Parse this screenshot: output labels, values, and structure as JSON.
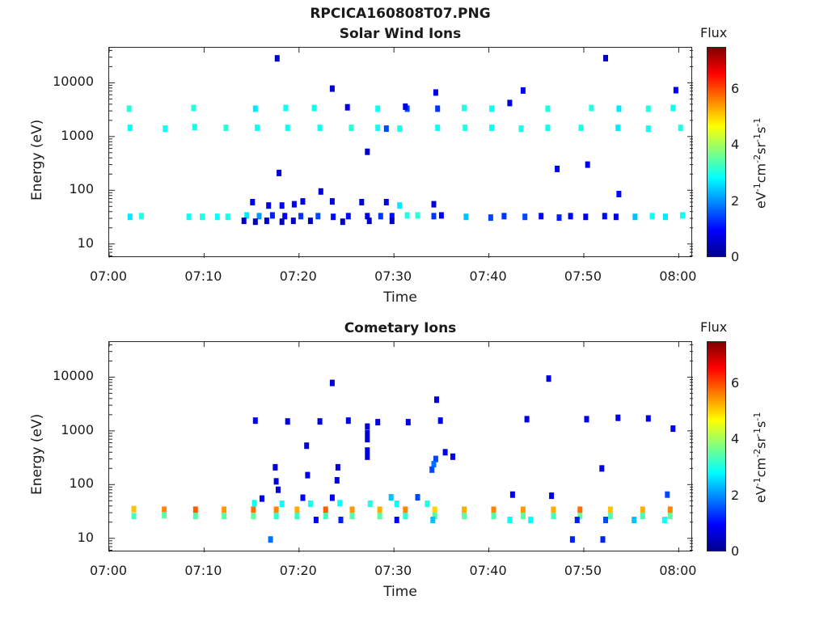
{
  "figure": {
    "title": "RPCICA160808T07.PNG",
    "time_label": "Time",
    "energy_label": "Energy (eV)",
    "x_tick_labels": [
      "07:00",
      "07:10",
      "07:20",
      "07:30",
      "07:40",
      "07:50",
      "08:00"
    ],
    "y_tick_labels": [
      "10",
      "100",
      "1000",
      "10000"
    ],
    "colorbar": {
      "title": "Flux",
      "label_parts": [
        "eV",
        "-1",
        "cm",
        "-2",
        "sr",
        "-1",
        "s",
        "-1"
      ],
      "ticks": [
        "0",
        "2",
        "4",
        "6"
      ],
      "range": [
        0,
        7.5
      ],
      "colormap": "jet",
      "colors": [
        "#00008f",
        "#0000ff",
        "#00ffff",
        "#80ff80",
        "#ffff00",
        "#ff0000",
        "#800000"
      ]
    }
  },
  "chart_data": [
    {
      "type": "heatmap",
      "title": "Solar Wind Ions",
      "xlabel": "Time",
      "ylabel": "Energy (eV)",
      "x_range_min": [
        0,
        61.5
      ],
      "y_range_eV": [
        5.5,
        45000
      ],
      "y_scale": "log",
      "z_label": "Flux",
      "z_range": [
        0,
        7.5
      ],
      "cells": [
        [
          2.2,
          32,
          2.4
        ],
        [
          3.4,
          33,
          2.8
        ],
        [
          8.4,
          32,
          2.6
        ],
        [
          9.8,
          32,
          2.8
        ],
        [
          11.4,
          32,
          2.6
        ],
        [
          12.5,
          32,
          2.7
        ],
        [
          14.5,
          34,
          2.4
        ],
        [
          15.8,
          33,
          2.0
        ],
        [
          17.2,
          34,
          1.4
        ],
        [
          18.5,
          33,
          1.2
        ],
        [
          20.2,
          33,
          1.5
        ],
        [
          22,
          33,
          1.6
        ],
        [
          23.6,
          32,
          1.3
        ],
        [
          25.2,
          33,
          1.3
        ],
        [
          27.2,
          33,
          1.0
        ],
        [
          28.6,
          33,
          1.5
        ],
        [
          29.8,
          33,
          1.3
        ],
        [
          31.4,
          34,
          2.8
        ],
        [
          32.5,
          34,
          2.9
        ],
        [
          34.2,
          33,
          1.5
        ],
        [
          35,
          34,
          1.2
        ],
        [
          37.6,
          32,
          2.2
        ],
        [
          40.2,
          31,
          1.6
        ],
        [
          41.6,
          33,
          1.5
        ],
        [
          43.8,
          32,
          1.6
        ],
        [
          45.5,
          33,
          1.2
        ],
        [
          47.4,
          31,
          1.4
        ],
        [
          48.6,
          33,
          1.2
        ],
        [
          50.2,
          32,
          1.0
        ],
        [
          52.2,
          33,
          1.3
        ],
        [
          53.4,
          32,
          1.2
        ],
        [
          55.4,
          32,
          2.2
        ],
        [
          57.2,
          33,
          2.6
        ],
        [
          58.6,
          32,
          2.4
        ],
        [
          60.4,
          34,
          2.6
        ],
        [
          14.2,
          27,
          0.6
        ],
        [
          15.4,
          26,
          0.5
        ],
        [
          16.6,
          27,
          0.6
        ],
        [
          18.2,
          26,
          0.5
        ],
        [
          19.4,
          27,
          0.5
        ],
        [
          21.2,
          27,
          0.5
        ],
        [
          24.6,
          26,
          0.5
        ],
        [
          27.4,
          27,
          0.6
        ],
        [
          29.8,
          27,
          0.5
        ],
        [
          15.1,
          60,
          1.0
        ],
        [
          16.8,
          52,
          0.9
        ],
        [
          18.2,
          52,
          1.2
        ],
        [
          19.5,
          55,
          1.1
        ],
        [
          20.4,
          62,
          0.9
        ],
        [
          23.5,
          62,
          0.8
        ],
        [
          26.6,
          60,
          0.9
        ],
        [
          29.2,
          60,
          0.9
        ],
        [
          30.6,
          52,
          2.4
        ],
        [
          34.2,
          55,
          0.8
        ],
        [
          2.1,
          3300,
          2.9
        ],
        [
          8.9,
          3400,
          2.8
        ],
        [
          15.4,
          3300,
          2.4
        ],
        [
          18.6,
          3400,
          2.6
        ],
        [
          21.6,
          3400,
          2.6
        ],
        [
          25.1,
          3500,
          1.0
        ],
        [
          28.3,
          3300,
          2.6
        ],
        [
          31.4,
          3300,
          1.6
        ],
        [
          34.6,
          3300,
          1.5
        ],
        [
          37.4,
          3400,
          2.8
        ],
        [
          40.3,
          3300,
          2.6
        ],
        [
          46.2,
          3300,
          2.8
        ],
        [
          50.8,
          3400,
          2.8
        ],
        [
          53.7,
          3300,
          2.4
        ],
        [
          56.8,
          3300,
          2.8
        ],
        [
          59.4,
          3400,
          2.6
        ],
        [
          31.2,
          3600,
          0.9
        ],
        [
          42.2,
          4200,
          0.9
        ],
        [
          2.2,
          1450,
          2.6
        ],
        [
          5.9,
          1400,
          2.6
        ],
        [
          9,
          1500,
          2.7
        ],
        [
          12.3,
          1450,
          2.9
        ],
        [
          15.6,
          1450,
          2.6
        ],
        [
          18.8,
          1450,
          2.6
        ],
        [
          22.2,
          1450,
          2.6
        ],
        [
          25.5,
          1450,
          2.9
        ],
        [
          28.3,
          1450,
          2.7
        ],
        [
          30.6,
          1400,
          2.8
        ],
        [
          34.6,
          1450,
          2.6
        ],
        [
          37.5,
          1450,
          2.8
        ],
        [
          40.3,
          1450,
          2.6
        ],
        [
          43.4,
          1400,
          2.8
        ],
        [
          46.2,
          1450,
          2.7
        ],
        [
          49.7,
          1450,
          2.8
        ],
        [
          53.6,
          1450,
          2.4
        ],
        [
          56.8,
          1400,
          2.6
        ],
        [
          60.2,
          1450,
          2.8
        ],
        [
          29.2,
          1400,
          1.6
        ],
        [
          23.5,
          7800,
          0.8
        ],
        [
          27.2,
          520,
          0.7
        ],
        [
          17.9,
          210,
          0.8
        ],
        [
          22.3,
          95,
          0.8
        ],
        [
          34.4,
          6600,
          1.0
        ],
        [
          43.6,
          7200,
          1.2
        ],
        [
          59.7,
          7300,
          1.0
        ],
        [
          47.2,
          250,
          1.0
        ],
        [
          50.4,
          300,
          1.0
        ],
        [
          53.7,
          85,
          1.3
        ],
        [
          17.7,
          28500,
          0.6
        ],
        [
          52.3,
          28800,
          0.6
        ]
      ]
    },
    {
      "type": "heatmap",
      "title": "Cometary Ions",
      "xlabel": "Time",
      "ylabel": "Energy (eV)",
      "x_range_min": [
        0,
        61.5
      ],
      "y_range_eV": [
        5.5,
        45000
      ],
      "y_scale": "log",
      "z_label": "Flux",
      "z_range": [
        0,
        7.5
      ],
      "cells": [
        [
          2.6,
          35,
          5.3
        ],
        [
          5.8,
          34,
          5.6
        ],
        [
          9.1,
          34,
          5.8
        ],
        [
          12.1,
          34,
          5.5
        ],
        [
          15.2,
          34,
          5.7
        ],
        [
          17.6,
          34,
          5.6
        ],
        [
          19.8,
          34,
          5.4
        ],
        [
          22.8,
          34,
          5.8
        ],
        [
          25.6,
          34,
          5.5
        ],
        [
          28.5,
          34,
          5.4
        ],
        [
          31.2,
          34,
          5.6
        ],
        [
          34.3,
          34,
          5.2
        ],
        [
          37.4,
          34,
          5.4
        ],
        [
          40.5,
          34,
          5.6
        ],
        [
          43.6,
          34,
          5.5
        ],
        [
          46.8,
          34,
          5.4
        ],
        [
          49.6,
          34,
          5.7
        ],
        [
          52.8,
          34,
          5.3
        ],
        [
          56.2,
          34,
          5.4
        ],
        [
          59.1,
          34,
          5.6
        ],
        [
          2.6,
          26,
          3.2
        ],
        [
          5.8,
          27,
          3.4
        ],
        [
          9.1,
          26,
          3.3
        ],
        [
          12.1,
          26,
          3.4
        ],
        [
          15.2,
          26,
          3.5
        ],
        [
          17.6,
          26,
          3.0
        ],
        [
          19.8,
          26,
          3.0
        ],
        [
          22.8,
          26,
          3.2
        ],
        [
          25.6,
          26,
          3.3
        ],
        [
          28.5,
          26,
          3.4
        ],
        [
          31.2,
          26,
          3.0
        ],
        [
          34.3,
          26,
          3.2
        ],
        [
          37.4,
          26,
          3.4
        ],
        [
          40.5,
          26,
          3.3
        ],
        [
          43.6,
          26,
          3.4
        ],
        [
          46.8,
          26,
          3.2
        ],
        [
          49.6,
          26,
          3.5
        ],
        [
          52.8,
          26,
          3.3
        ],
        [
          56.2,
          26,
          3.2
        ],
        [
          59.1,
          26,
          3.4
        ],
        [
          15.3,
          45,
          2.6
        ],
        [
          18.2,
          44,
          2.6
        ],
        [
          21.2,
          44,
          2.7
        ],
        [
          24.3,
          45,
          2.5
        ],
        [
          27.5,
          44,
          2.8
        ],
        [
          30.3,
          44,
          2.6
        ],
        [
          33.5,
          44,
          2.8
        ],
        [
          16.1,
          55,
          1.2
        ],
        [
          20.4,
          57,
          1.2
        ],
        [
          23.5,
          57,
          1.2
        ],
        [
          29.7,
          58,
          2.2
        ],
        [
          21.8,
          22,
          1.2
        ],
        [
          24.4,
          22,
          1.4
        ],
        [
          30.3,
          22,
          1.2
        ],
        [
          34.1,
          22,
          2.2
        ],
        [
          42.2,
          22,
          2.6
        ],
        [
          44.4,
          22,
          2.5
        ],
        [
          49.3,
          22,
          1.4
        ],
        [
          52.3,
          22,
          1.6
        ],
        [
          55.3,
          22,
          2.2
        ],
        [
          58.5,
          22,
          2.6
        ],
        [
          17,
          9.5,
          1.8
        ],
        [
          48.8,
          9.5,
          1.4
        ],
        [
          52,
          9.5,
          1.4
        ],
        [
          15.4,
          1550,
          1.2
        ],
        [
          18.8,
          1500,
          0.9
        ],
        [
          22.2,
          1500,
          0.9
        ],
        [
          25.2,
          1550,
          1.0
        ],
        [
          28.3,
          1450,
          1.0
        ],
        [
          31.5,
          1450,
          0.9
        ],
        [
          34.9,
          1550,
          1.0
        ],
        [
          56.8,
          1700,
          1.0
        ],
        [
          53.6,
          1750,
          1.0
        ],
        [
          59.4,
          1100,
          1.0
        ],
        [
          27.2,
          1200,
          0.8
        ],
        [
          27.2,
          900,
          0.8
        ],
        [
          27.2,
          700,
          0.8
        ],
        [
          27.2,
          430,
          0.9
        ],
        [
          27.2,
          330,
          0.9
        ],
        [
          20.8,
          530,
          0.8
        ],
        [
          34.4,
          300,
          1.6
        ],
        [
          34.2,
          240,
          1.8
        ],
        [
          34,
          190,
          1.6
        ],
        [
          35.4,
          400,
          1.0
        ],
        [
          36.2,
          330,
          1.0
        ],
        [
          17.5,
          210,
          0.8
        ],
        [
          20.9,
          150,
          0.9
        ],
        [
          24.1,
          210,
          0.8
        ],
        [
          17.6,
          115,
          0.8
        ],
        [
          24,
          120,
          0.8
        ],
        [
          17.8,
          80,
          0.8
        ],
        [
          23.5,
          7800,
          0.8
        ],
        [
          34.5,
          3800,
          0.8
        ],
        [
          46.3,
          9400,
          0.8
        ],
        [
          44,
          1650,
          1.0
        ],
        [
          50.3,
          1650,
          1.0
        ],
        [
          51.9,
          200,
          1.0
        ],
        [
          42.5,
          65,
          1.0
        ],
        [
          46.6,
          62,
          1.0
        ],
        [
          32.5,
          58,
          1.6
        ],
        [
          58.8,
          65,
          1.6
        ]
      ]
    }
  ]
}
